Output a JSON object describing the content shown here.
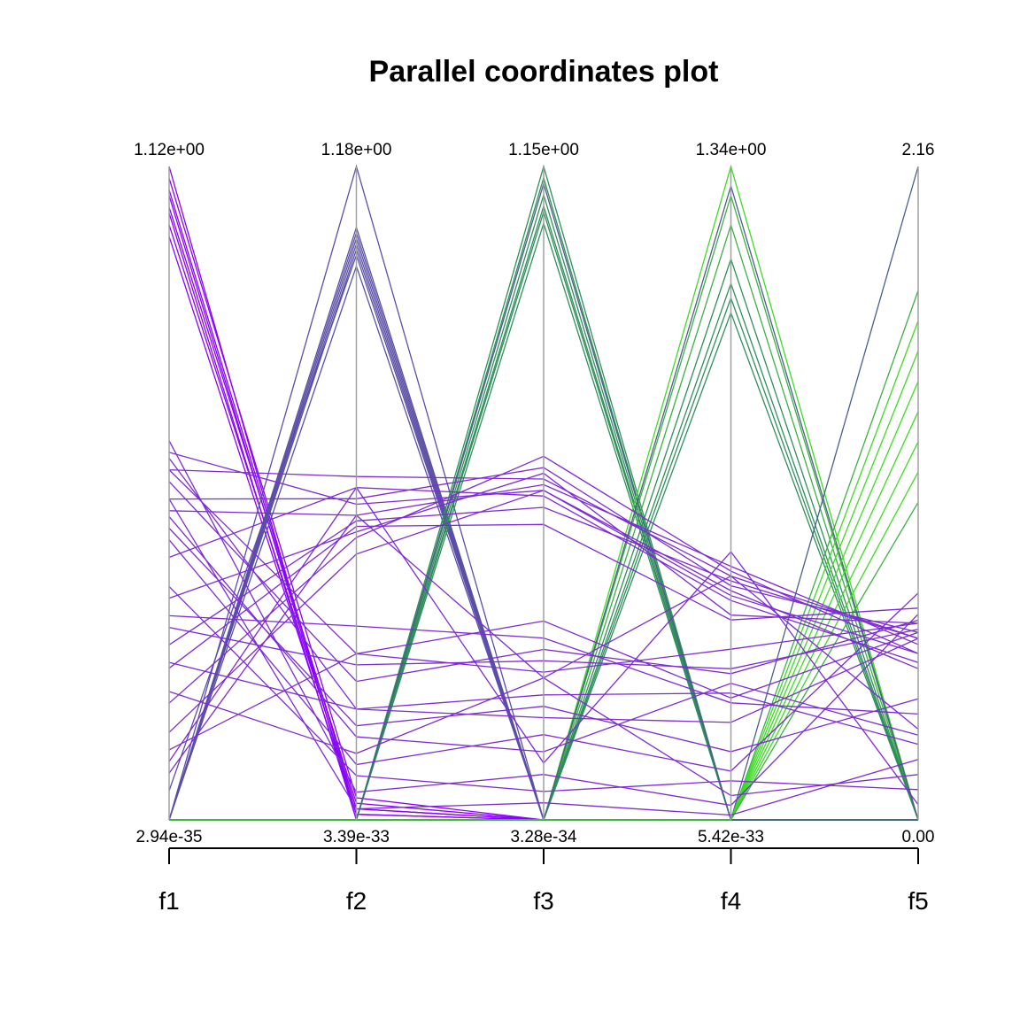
{
  "chart_data": {
    "type": "parallel-coordinates",
    "title": "Parallel coordinates plot",
    "axes": [
      {
        "name": "f1",
        "max_label": "1.12e+00",
        "min_label": "2.94e-35",
        "max": 1.12,
        "min": 2.94e-35
      },
      {
        "name": "f2",
        "max_label": "1.18e+00",
        "min_label": "3.39e-33",
        "max": 1.18,
        "min": 3.39e-33
      },
      {
        "name": "f3",
        "max_label": "1.15e+00",
        "min_label": "3.28e-34",
        "max": 1.15,
        "min": 3.28e-34
      },
      {
        "name": "f4",
        "max_label": "1.34e+00",
        "min_label": "5.42e-33",
        "max": 1.34,
        "min": 5.42e-33
      },
      {
        "name": "f5",
        "max_label": "2.16",
        "min_label": "0.00",
        "max": 2.16,
        "min": 0.0
      }
    ],
    "colors": {
      "purple_bright": "#8b00ff",
      "purple": "#7d2bd6",
      "purple_slate": "#5a4fa6",
      "slate": "#4a5f8a",
      "teal_green": "#2f8f5a",
      "green": "#3cb043",
      "green_bright": "#3ddc22",
      "axis_line": "#a0a0a0",
      "ticks": "#000000"
    },
    "grid": false,
    "legend": "none",
    "series": [
      {
        "color": "#8b00ff",
        "values": [
          1.1,
          0.04,
          0.0,
          0.0,
          0.0
        ]
      },
      {
        "color": "#8b00ff",
        "values": [
          1.08,
          0.02,
          0.0,
          0.0,
          0.0
        ]
      },
      {
        "color": "#8b00ff",
        "values": [
          1.07,
          0.01,
          0.0,
          0.0,
          0.0
        ]
      },
      {
        "color": "#8b00ff",
        "values": [
          1.05,
          0.03,
          0.0,
          0.0,
          0.0
        ]
      },
      {
        "color": "#8b00ff",
        "values": [
          1.04,
          0.0,
          0.0,
          0.0,
          0.0
        ]
      },
      {
        "color": "#8b00ff",
        "values": [
          1.02,
          0.02,
          0.0,
          0.0,
          0.0
        ]
      },
      {
        "color": "#8b00ff",
        "values": [
          1.0,
          0.01,
          0.0,
          0.0,
          0.0
        ]
      },
      {
        "color": "#8b00ff",
        "values": [
          1.12,
          0.0,
          0.0,
          0.0,
          0.0
        ]
      },
      {
        "color": "#5a4fa6",
        "values": [
          0.0,
          1.07,
          0.0,
          0.0,
          0.0
        ]
      },
      {
        "color": "#5a4fa6",
        "values": [
          0.0,
          1.06,
          0.0,
          0.0,
          0.0
        ]
      },
      {
        "color": "#5a4fa6",
        "values": [
          0.0,
          1.05,
          0.0,
          0.0,
          0.0
        ]
      },
      {
        "color": "#5a4fa6",
        "values": [
          0.0,
          1.04,
          0.0,
          0.0,
          0.0
        ]
      },
      {
        "color": "#5a4fa6",
        "values": [
          0.0,
          1.03,
          0.0,
          0.0,
          0.0
        ]
      },
      {
        "color": "#5a4fa6",
        "values": [
          0.0,
          1.0,
          0.0,
          0.0,
          0.0
        ]
      },
      {
        "color": "#5a4fa6",
        "values": [
          0.0,
          1.18,
          0.0,
          0.0,
          0.0
        ]
      },
      {
        "color": "#5a4fa6",
        "values": [
          0.05,
          1.02,
          0.0,
          0.0,
          0.0
        ]
      },
      {
        "color": "#2f8f5a",
        "values": [
          0.0,
          0.0,
          1.15,
          0.0,
          0.0
        ]
      },
      {
        "color": "#2f8f5a",
        "values": [
          0.0,
          0.0,
          1.13,
          0.0,
          0.0
        ]
      },
      {
        "color": "#2f8f5a",
        "values": [
          0.0,
          0.0,
          1.1,
          0.0,
          0.0
        ]
      },
      {
        "color": "#2f8f5a",
        "values": [
          0.0,
          0.0,
          1.08,
          0.0,
          0.0
        ]
      },
      {
        "color": "#2f8f5a",
        "values": [
          0.0,
          0.0,
          1.07,
          0.0,
          0.0
        ]
      },
      {
        "color": "#2f8f5a",
        "values": [
          0.0,
          0.0,
          1.05,
          0.0,
          0.0
        ]
      },
      {
        "color": "#4a5f8a",
        "values": [
          0.0,
          0.0,
          1.12,
          0.0,
          0.0
        ]
      },
      {
        "color": "#3ddc22",
        "values": [
          0.0,
          0.0,
          0.0,
          1.34,
          0.0
        ]
      },
      {
        "color": "#3cb043",
        "values": [
          0.0,
          0.0,
          0.0,
          1.28,
          0.0
        ]
      },
      {
        "color": "#3cb043",
        "values": [
          0.0,
          0.0,
          0.0,
          1.22,
          0.0
        ]
      },
      {
        "color": "#2f8f5a",
        "values": [
          0.0,
          0.0,
          0.0,
          1.15,
          0.0
        ]
      },
      {
        "color": "#2f8f5a",
        "values": [
          0.0,
          0.0,
          0.0,
          1.1,
          0.0
        ]
      },
      {
        "color": "#2f8f5a",
        "values": [
          0.0,
          0.0,
          0.0,
          1.07,
          0.0
        ]
      },
      {
        "color": "#2f8f5a",
        "values": [
          0.0,
          0.0,
          0.0,
          1.04,
          0.0
        ]
      },
      {
        "color": "#4a5f8a",
        "values": [
          0.0,
          0.0,
          0.0,
          1.3,
          0.0
        ]
      },
      {
        "color": "#4a5f8a",
        "values": [
          0.0,
          0.0,
          0.0,
          0.0,
          2.16
        ]
      },
      {
        "color": "#3cb043",
        "values": [
          0.0,
          0.0,
          0.0,
          0.0,
          1.75
        ]
      },
      {
        "color": "#3ddc22",
        "values": [
          0.0,
          0.0,
          0.0,
          0.0,
          1.65
        ]
      },
      {
        "color": "#3ddc22",
        "values": [
          0.0,
          0.0,
          0.0,
          0.0,
          1.55
        ]
      },
      {
        "color": "#3ddc22",
        "values": [
          0.0,
          0.0,
          0.0,
          0.0,
          1.45
        ]
      },
      {
        "color": "#3ddc22",
        "values": [
          0.0,
          0.0,
          0.0,
          0.0,
          1.35
        ]
      },
      {
        "color": "#3ddc22",
        "values": [
          0.0,
          0.0,
          0.0,
          0.0,
          1.25
        ]
      },
      {
        "color": "#3ddc22",
        "values": [
          0.0,
          0.0,
          0.0,
          0.0,
          1.15
        ]
      },
      {
        "color": "#3cb043",
        "values": [
          0.0,
          0.0,
          0.0,
          0.0,
          1.05
        ]
      },
      {
        "color": "#7d2bd6",
        "values": [
          0.63,
          0.57,
          0.58,
          0.46,
          0.55
        ]
      },
      {
        "color": "#7d2bd6",
        "values": [
          0.6,
          0.62,
          0.6,
          0.5,
          0.6
        ]
      },
      {
        "color": "#7d2bd6",
        "values": [
          0.55,
          0.58,
          0.62,
          0.48,
          0.62
        ]
      },
      {
        "color": "#7d2bd6",
        "values": [
          0.53,
          0.55,
          0.59,
          0.52,
          0.58
        ]
      },
      {
        "color": "#7d2bd6",
        "values": [
          0.45,
          0.6,
          0.57,
          0.45,
          0.52
        ]
      },
      {
        "color": "#7d2bd6",
        "values": [
          0.38,
          0.52,
          0.61,
          0.42,
          0.65
        ]
      },
      {
        "color": "#7d2bd6",
        "values": [
          0.3,
          0.54,
          0.55,
          0.49,
          0.6
        ]
      },
      {
        "color": "#7d2bd6",
        "values": [
          0.26,
          0.53,
          0.52,
          0.41,
          0.7
        ]
      },
      {
        "color": "#7d2bd6",
        "values": [
          0.2,
          0.51,
          0.64,
          0.51,
          0.55
        ]
      },
      {
        "color": "#7d2bd6",
        "values": [
          0.15,
          0.48,
          0.58,
          0.47,
          0.5
        ]
      },
      {
        "color": "#7d2bd6",
        "values": [
          0.6,
          0.3,
          0.35,
          0.25,
          0.62
        ]
      },
      {
        "color": "#7d2bd6",
        "values": [
          0.58,
          0.25,
          0.3,
          0.3,
          0.66
        ]
      },
      {
        "color": "#7d2bd6",
        "values": [
          0.62,
          0.2,
          0.18,
          0.2,
          0.6
        ]
      },
      {
        "color": "#7d2bd6",
        "values": [
          0.52,
          0.15,
          0.12,
          0.28,
          0.28
        ]
      },
      {
        "color": "#7d2bd6",
        "values": [
          0.48,
          0.1,
          0.15,
          0.1,
          0.75
        ]
      },
      {
        "color": "#7d2bd6",
        "values": [
          0.5,
          0.17,
          0.2,
          0.14,
          0.4
        ]
      },
      {
        "color": "#7d2bd6",
        "values": [
          0.35,
          0.35,
          0.32,
          0.24,
          0.35
        ]
      },
      {
        "color": "#7d2bd6",
        "values": [
          0.33,
          0.28,
          0.28,
          0.31,
          0.63
        ]
      },
      {
        "color": "#7d2bd6",
        "values": [
          0.27,
          0.2,
          0.22,
          0.26,
          0.25
        ]
      },
      {
        "color": "#7d2bd6",
        "values": [
          0.22,
          0.12,
          0.25,
          0.05,
          0.15
        ]
      },
      {
        "color": "#7d2bd6",
        "values": [
          0.4,
          0.08,
          0.05,
          0.08,
          0.1
        ]
      },
      {
        "color": "#7d2bd6",
        "values": [
          0.12,
          0.3,
          0.26,
          0.35,
          0.65
        ]
      },
      {
        "color": "#7d2bd6",
        "values": [
          0.65,
          0.05,
          0.08,
          0.03,
          0.68
        ]
      },
      {
        "color": "#7d2bd6",
        "values": [
          0.55,
          0.02,
          0.03,
          0.01,
          0.2
        ]
      },
      {
        "color": "#7d2bd6",
        "values": [
          0.1,
          0.6,
          0.1,
          0.55,
          0.05
        ]
      },
      {
        "color": "#7d2bd6",
        "values": [
          0.08,
          0.55,
          0.25,
          0.5,
          0.3
        ]
      }
    ]
  }
}
